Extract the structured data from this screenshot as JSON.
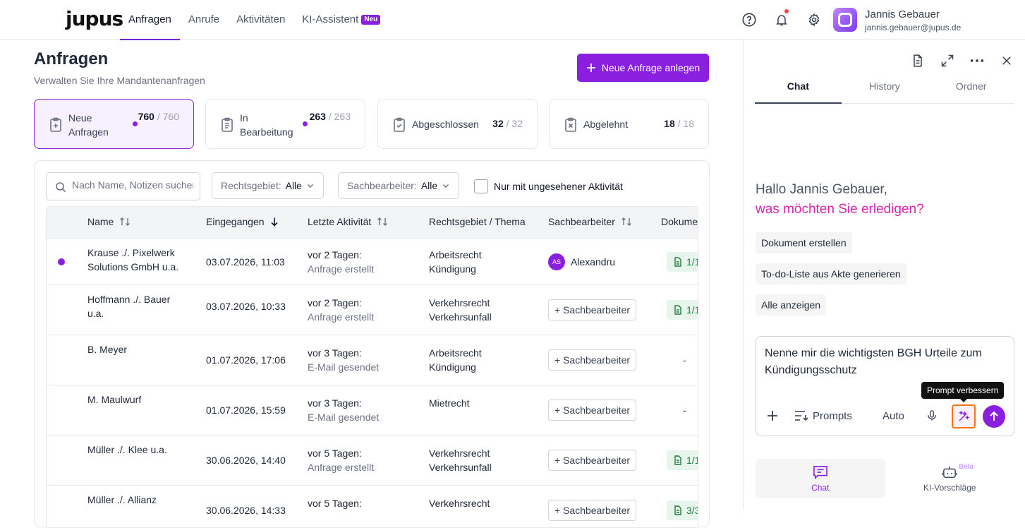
{
  "app": {
    "logo": "jupus",
    "nav": [
      {
        "label": "Anfragen",
        "active": true
      },
      {
        "label": "Anrufe",
        "active": false
      },
      {
        "label": "Aktivitäten",
        "active": false
      },
      {
        "label": "KI-Assistent",
        "active": false,
        "badge": "Neu"
      }
    ],
    "user": {
      "name": "Jannis Gebauer",
      "email": "jannis.gebauer@jupus.de"
    },
    "icons": [
      "help-icon",
      "bell-icon",
      "gear-icon"
    ],
    "accent": "#8b1fe0"
  },
  "page": {
    "title": "Anfragen",
    "subtitle": "Verwalten Sie Ihre Mandantenanfragen",
    "new_button": "Neue Anfrage anlegen"
  },
  "stats": [
    {
      "label_1": "Neue",
      "label_2": "Anfragen",
      "count": "760",
      "total": "/ 760",
      "active": true,
      "dot": true
    },
    {
      "label_1": "In",
      "label_2": "Bearbeitung",
      "count": "263",
      "total": "/ 263",
      "active": false,
      "dot": true
    },
    {
      "label_1": "Abgeschlossen",
      "label_2": "",
      "count": "32",
      "total": "/ 32",
      "active": false,
      "dot": false
    },
    {
      "label_1": "Abgelehnt",
      "label_2": "",
      "count": "18",
      "total": "/ 18",
      "active": false,
      "dot": false
    }
  ],
  "filters": {
    "search_placeholder": "Nach Name, Notizen suchen",
    "rechtsgebiet_label": "Rechtsgebiet:",
    "rechtsgebiet_value": "Alle",
    "sachbearbeiter_label": "Sachbearbeiter:",
    "sachbearbeiter_value": "Alle",
    "unseen_only": "Nur mit ungesehener Aktivität"
  },
  "table": {
    "columns": [
      "Name",
      "Eingegangen",
      "Letzte Aktivität",
      "Rechtsgebiet / Thema",
      "Sachbearbeiter",
      "Dokume"
    ],
    "rows": [
      {
        "name_1": "Krause ./. Pixelwerk",
        "name_2": "Solutions GmbH u.a.",
        "date": "03.07.2026, 11:03",
        "act_1": "vor 2 Tagen:",
        "act_2": "Anfrage erstellt",
        "area_1": "Arbeitsrecht",
        "area_2": "Kündigung",
        "assignee": "Alexandru",
        "initials": "AS",
        "doc": "1/1",
        "unread": true
      },
      {
        "name_1": "Hoffmann ./. Bauer",
        "name_2": "u.a.",
        "date": "03.07.2026, 10:33",
        "act_1": "vor 2 Tagen:",
        "act_2": "Anfrage erstellt",
        "area_1": "Verkehrsrecht",
        "area_2": "Verkehrsunfall",
        "assignee": "+ Sachbearbeiter",
        "initials": "",
        "doc": "1/1",
        "unread": false
      },
      {
        "name_1": "B. Meyer",
        "name_2": "",
        "date": "01.07.2026, 17:06",
        "act_1": "vor 3 Tagen:",
        "act_2": "E-Mail gesendet",
        "area_1": "Arbeitsrecht",
        "area_2": "Kündigung",
        "assignee": "+ Sachbearbeiter",
        "initials": "",
        "doc": "-",
        "unread": false
      },
      {
        "name_1": "M. Maulwurf",
        "name_2": "",
        "date": "01.07.2026, 15:59",
        "act_1": "vor 3 Tagen:",
        "act_2": "E-Mail gesendet",
        "area_1": "Mietrecht",
        "area_2": "",
        "assignee": "+ Sachbearbeiter",
        "initials": "",
        "doc": "-",
        "unread": false
      },
      {
        "name_1": "Müller ./. Klee u.a.",
        "name_2": "",
        "date": "30.06.2026, 14:40",
        "act_1": "vor 5 Tagen:",
        "act_2": "Anfrage erstellt",
        "area_1": "Verkehrsrecht",
        "area_2": "Verkehrsunfall",
        "assignee": "+ Sachbearbeiter",
        "initials": "",
        "doc": "1/1",
        "unread": false
      },
      {
        "name_1": "Müller ./. Allianz",
        "name_2": "",
        "date": "30.06.2026, 14:33",
        "act_1": "vor 5 Tagen:",
        "act_2": "",
        "area_1": "Verkehrsrecht",
        "area_2": "",
        "assignee": "+ Sachbearbeiter",
        "initials": "",
        "doc": "3/3",
        "unread": false
      }
    ]
  },
  "assistant": {
    "tabs": [
      "Chat",
      "History",
      "Ordner"
    ],
    "greeting_1": "Hallo Jannis Gebauer,",
    "greeting_2": "was möchten Sie erledigen?",
    "chips": [
      "Dokument erstellen",
      "To-do-Liste aus Akte generieren",
      "Alle anzeigen"
    ],
    "input_text": "Nenne mir die wichtigsten BGH Urteile zum Kündigungsschutz",
    "prompts_label": "Prompts",
    "mode_label": "Auto",
    "tooltip": "Prompt verbessern",
    "bottom_nav": [
      {
        "label": "Chat",
        "active": true
      },
      {
        "label": "KI-Vorschläge",
        "active": false,
        "badge": "Beta"
      }
    ]
  }
}
